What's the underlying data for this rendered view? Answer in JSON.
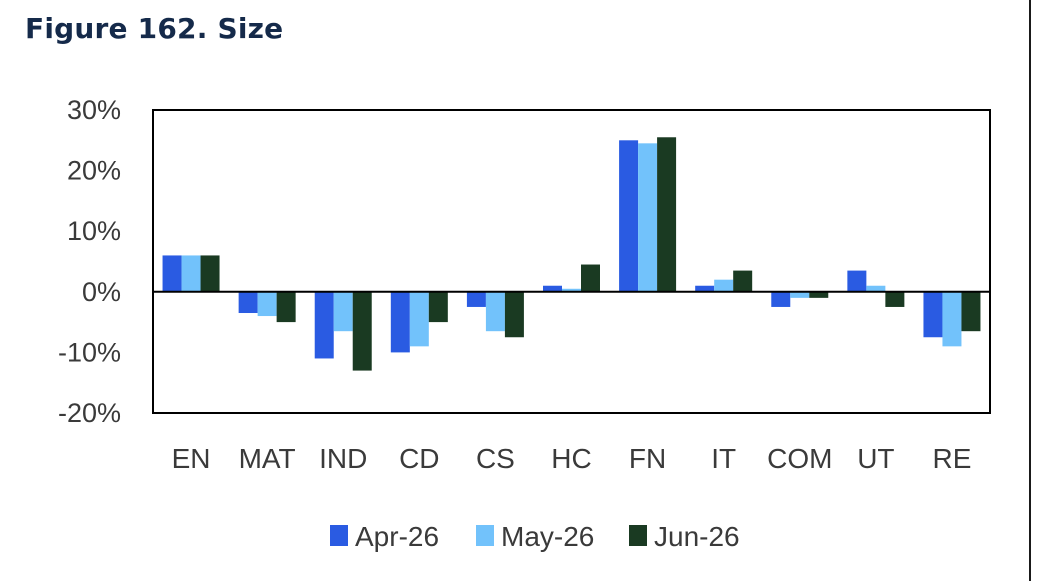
{
  "figure_title": "Figure 162. Size",
  "chart_data": {
    "type": "bar",
    "categories": [
      "EN",
      "MAT",
      "IND",
      "CD",
      "CS",
      "HC",
      "FN",
      "IT",
      "COM",
      "UT",
      "RE"
    ],
    "series": [
      {
        "name": "Apr-26",
        "color": "#2a5be2",
        "values": [
          6,
          -3.5,
          -11,
          -10,
          -2.5,
          1,
          25,
          1,
          -2.5,
          3.5,
          -7.5
        ]
      },
      {
        "name": "May-26",
        "color": "#72c2fb",
        "values": [
          6,
          -4,
          -6.5,
          -9,
          -6.5,
          0.5,
          24.5,
          2,
          -1,
          1,
          -9
        ]
      },
      {
        "name": "Jun-26",
        "color": "#1a3a22",
        "values": [
          6,
          -5,
          -13,
          -5,
          -7.5,
          4.5,
          25.5,
          3.5,
          -1,
          -2.5,
          -6.5
        ]
      }
    ],
    "ylim": [
      -20,
      30
    ],
    "yticks": [
      30,
      20,
      10,
      0,
      -10,
      -20
    ],
    "ytick_labels": [
      "30%",
      "20%",
      "10%",
      "0%",
      "-10%",
      "-20%"
    ],
    "xlabel": "",
    "ylabel": "",
    "legend_position": "bottom",
    "grid": false
  }
}
